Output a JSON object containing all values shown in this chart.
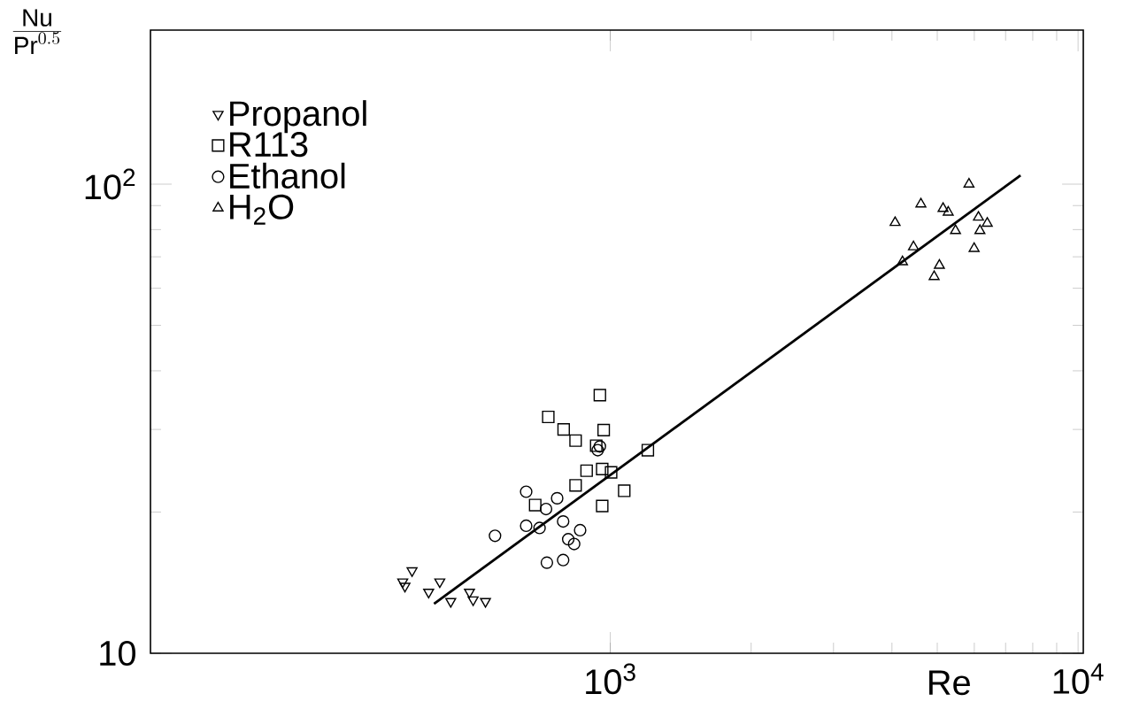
{
  "chart_data": {
    "type": "scatter",
    "xlabel": "Re",
    "ylabel": "\\frac{\\mathrm{Nu}}{\\mathrm{Pr}^{0.5}}",
    "log": "xy",
    "xlim": [
      104,
      10260
    ],
    "ylim": [
      10,
      213
    ],
    "xticks": [
      {
        "value": 1000,
        "label": "10$^{3}$"
      },
      {
        "value": 10000,
        "label": "10$^{4}$"
      }
    ],
    "yticks": [
      10,
      {
        "value": 100,
        "label": "10$^{2}$"
      }
    ],
    "grid": false,
    "legend": "top left",
    "series": [
      {
        "name": "Propanol",
        "color": "#000000",
        "marker": "triangle-down",
        "x": [
          360,
          377,
          364,
          409,
          432,
          456,
          500,
          509,
          541
        ],
        "values": [
          14.2,
          15.0,
          13.9,
          13.5,
          14.2,
          12.9,
          13.5,
          13.0,
          12.9
        ]
      },
      {
        "name": "R113",
        "color": "#000000",
        "marker": "square",
        "x": [
          737,
          795,
          843,
          950,
          968,
          933,
          890,
          961,
          1004,
          843,
          691,
          1071,
          961,
          1203
        ],
        "values": [
          31.9,
          30.0,
          28.4,
          35.5,
          29.9,
          27.7,
          24.5,
          24.7,
          24.3,
          22.8,
          20.7,
          22.2,
          20.6,
          27.1
        ]
      },
      {
        "name": "Ethanol",
        "color": "#000000",
        "marker": "circle",
        "x": [
          567,
          661,
          661,
          706,
          770,
          729,
          793,
          862,
          813,
          837,
          732,
          793,
          940,
          950
        ],
        "values": [
          17.8,
          22.1,
          18.7,
          18.5,
          21.4,
          20.3,
          19.1,
          18.3,
          17.5,
          17.1,
          15.6,
          15.8,
          27.1,
          27.6
        ]
      },
      {
        "name": "H$_{2}$O",
        "color": "#000000",
        "marker": "triangle",
        "x": [
          4063,
          4613,
          5145,
          5277,
          5845,
          4448,
          4213,
          5470,
          6124,
          6168,
          6396,
          5052,
          4924,
          5995
        ],
        "values": [
          82.8,
          90.7,
          88.7,
          87.1,
          100,
          73.5,
          68.3,
          79.6,
          85.0,
          79.6,
          82.5,
          67.1,
          63.5,
          72.9
        ]
      },
      {
        "type": "line",
        "color": "#000000",
        "marker": "none",
        "line_style": "solid",
        "x": [
          420,
          7534
        ],
        "values": [
          12.75,
          104.4
        ]
      }
    ]
  }
}
